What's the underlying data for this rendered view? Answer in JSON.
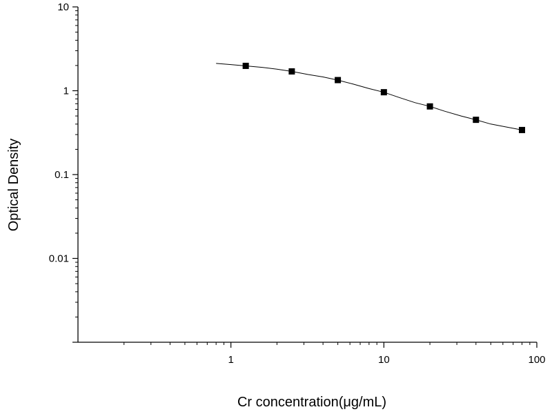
{
  "chart_data": {
    "type": "scatter",
    "title": "",
    "xlabel": "Cr concentration(μg/mL)",
    "ylabel": "Optical Density",
    "x_scale": "log",
    "y_scale": "log",
    "xlim": [
      0.1,
      100
    ],
    "ylim": [
      0.001,
      10
    ],
    "x_ticks": [
      {
        "value": 1,
        "label": "1"
      },
      {
        "value": 10,
        "label": "10"
      },
      {
        "value": 100,
        "label": "100"
      }
    ],
    "y_ticks": [
      {
        "value": 10,
        "label": "10"
      },
      {
        "value": 1,
        "label": "1"
      },
      {
        "value": 0.1,
        "label": "0.1"
      },
      {
        "value": 0.01,
        "label": "0.01"
      }
    ],
    "grid": false,
    "legend": "none",
    "series": [
      {
        "marker": "square",
        "color": "#000000",
        "x": [
          1.25,
          2.5,
          5,
          10,
          20,
          40,
          80
        ],
        "y": [
          1.98,
          1.7,
          1.34,
          0.96,
          0.65,
          0.45,
          0.34
        ]
      }
    ],
    "fit_curve": {
      "color": "#000000",
      "x": [
        0.8,
        1.0,
        1.25,
        1.6,
        2.0,
        2.5,
        3.2,
        4.0,
        5.0,
        6.3,
        8.0,
        10,
        12.6,
        16,
        20,
        25,
        32,
        40,
        50,
        63,
        80
      ],
      "y": [
        2.12,
        2.05,
        1.98,
        1.9,
        1.81,
        1.7,
        1.56,
        1.46,
        1.34,
        1.2,
        1.06,
        0.96,
        0.83,
        0.72,
        0.65,
        0.57,
        0.5,
        0.45,
        0.4,
        0.37,
        0.34
      ]
    }
  }
}
